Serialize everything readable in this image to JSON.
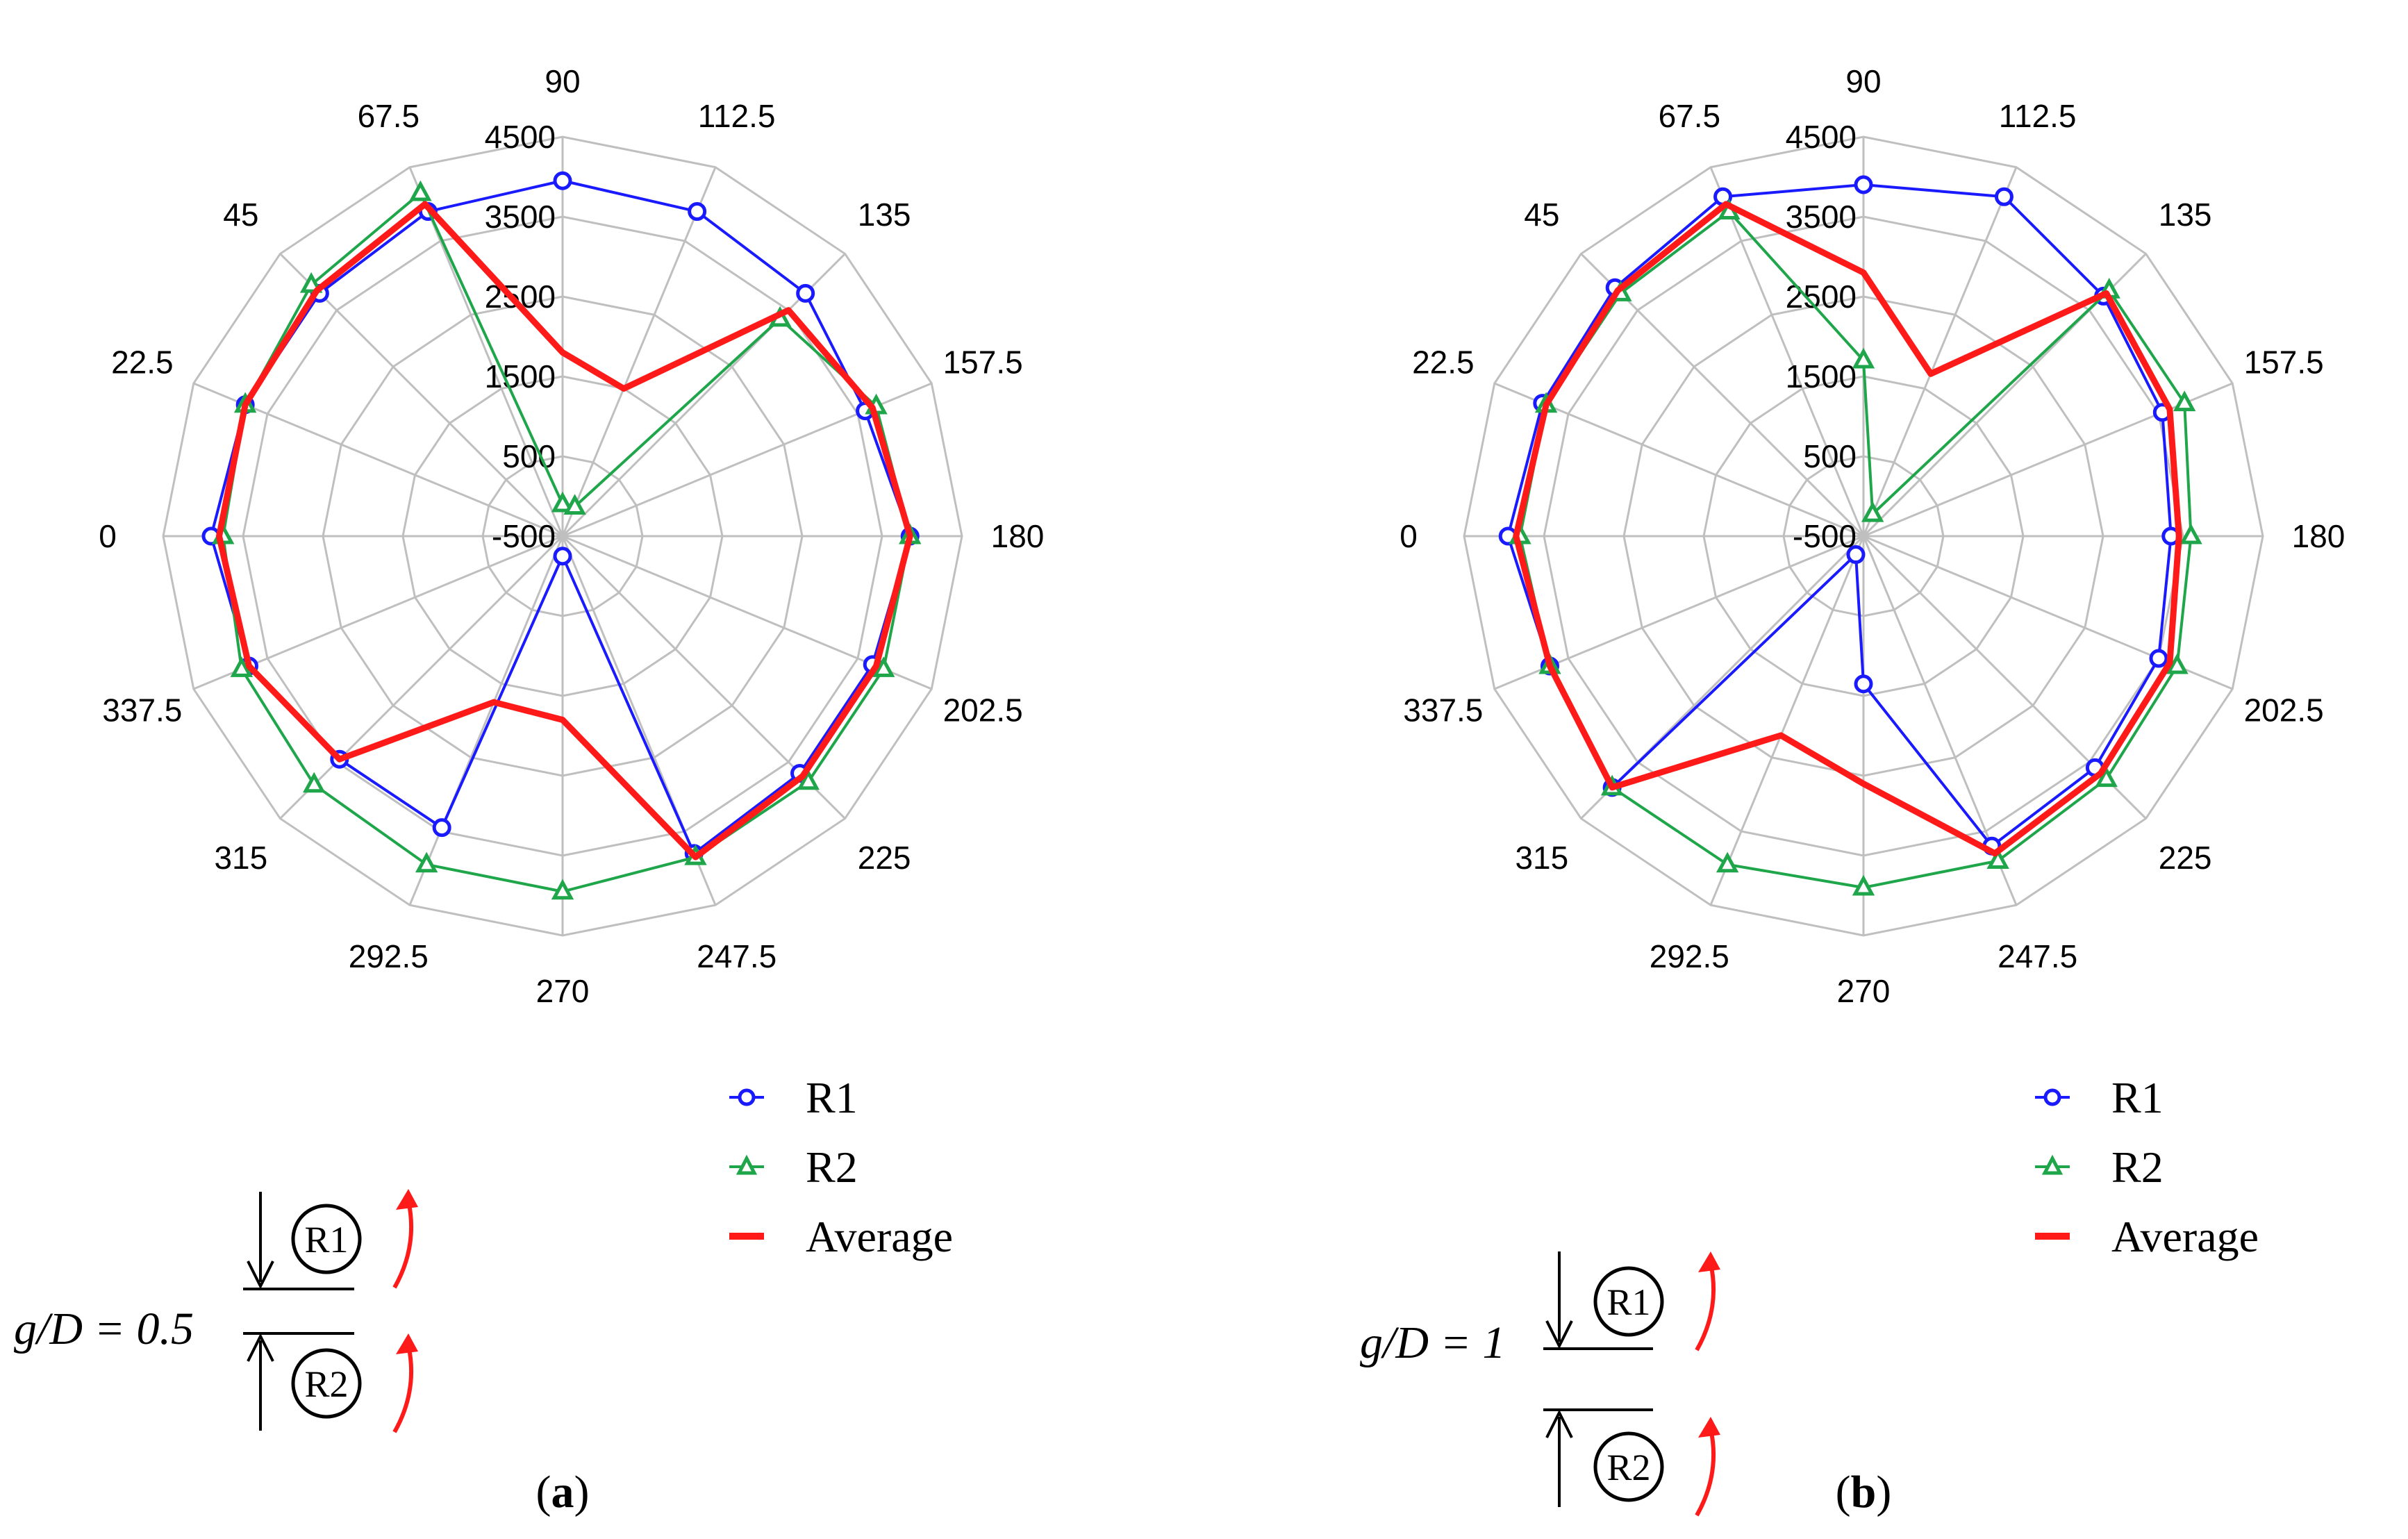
{
  "chart_data": [
    {
      "type": "radar",
      "panel_label": "a",
      "angle_labels": [
        "0",
        "22.5",
        "45",
        "67.5",
        "90",
        "112.5",
        "135",
        "157.5",
        "180",
        "202.5",
        "225",
        "247.5",
        "270",
        "292.5",
        "315",
        "337.5"
      ],
      "radial_ticks": [
        "-500",
        "500",
        "1500",
        "2500",
        "3500",
        "4500"
      ],
      "rlim": [
        -500,
        4500
      ],
      "series": [
        {
          "name": "R1",
          "color": "#1a1aff",
          "marker": "circle",
          "values": [
            3900,
            3800,
            3800,
            3900,
            3950,
            3900,
            3800,
            3600,
            3850,
            3700,
            3700,
            3800,
            -250,
            3450,
            3450,
            3750
          ]
        },
        {
          "name": "R2",
          "color": "#1fa64a",
          "marker": "triangle",
          "values": [
            3750,
            3800,
            3950,
            4150,
            -100,
            -100,
            3350,
            3750,
            3850,
            3850,
            3850,
            3850,
            3950,
            3950,
            3900,
            3850
          ]
        },
        {
          "name": "Average",
          "color": "#ff1a1a",
          "marker": "none",
          "values": [
            3800,
            3800,
            3850,
            4000,
            1800,
            1500,
            3500,
            3700,
            3850,
            3750,
            3750,
            3850,
            1800,
            1750,
            3450,
            3750
          ]
        }
      ],
      "annotation": {
        "ratio_label": "g/D = 0.5",
        "cylinders": [
          "R1",
          "R2"
        ]
      }
    },
    {
      "type": "radar",
      "panel_label": "b",
      "angle_labels": [
        "0",
        "22.5",
        "45",
        "67.5",
        "90",
        "112.5",
        "135",
        "157.5",
        "180",
        "202.5",
        "225",
        "247.5",
        "270",
        "292.5",
        "315",
        "337.5"
      ],
      "radial_ticks": [
        "-500",
        "500",
        "1500",
        "2500",
        "3500",
        "4500"
      ],
      "rlim": [
        -500,
        4500
      ],
      "series": [
        {
          "name": "R1",
          "color": "#1a1aff",
          "marker": "circle",
          "values": [
            3950,
            3850,
            3900,
            4100,
            3900,
            4100,
            3750,
            3550,
            3350,
            3500,
            3600,
            3700,
            1350,
            -250,
            3950,
            3750
          ]
        },
        {
          "name": "R2",
          "color": "#1fa64a",
          "marker": "triangle",
          "values": [
            3800,
            3800,
            3800,
            3900,
            1700,
            -200,
            3850,
            3850,
            3600,
            3750,
            3800,
            3900,
            3900,
            3950,
            3950,
            3750
          ]
        },
        {
          "name": "Average",
          "color": "#ff1a1a",
          "marker": "none",
          "values": [
            3850,
            3800,
            3850,
            4000,
            2800,
            1700,
            3800,
            3650,
            3450,
            3650,
            3700,
            3800,
            2600,
            2200,
            3950,
            3750
          ]
        }
      ],
      "annotation": {
        "ratio_label": "g/D = 1",
        "cylinders": [
          "R1",
          "R2"
        ]
      }
    }
  ],
  "legend": [
    {
      "name": "R1"
    },
    {
      "name": "R2"
    },
    {
      "name": "Average"
    }
  ],
  "captions": [
    "(a)",
    "(b)"
  ]
}
